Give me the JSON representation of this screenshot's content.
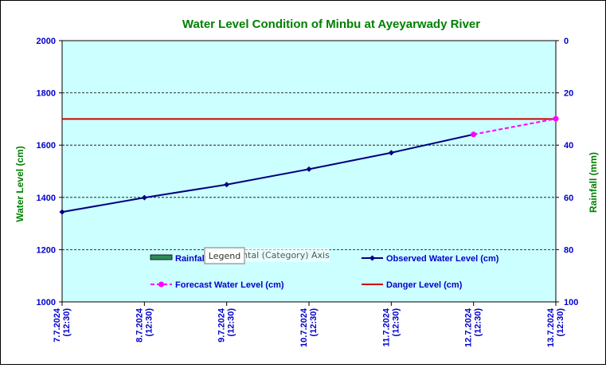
{
  "chart_data": {
    "type": "line",
    "title": "Water Level Condition of Minbu at Ayeyarwady River",
    "ylabel": "Water Level (cm)",
    "y2label": "Rainfall (mm)",
    "categories": [
      "7.7.2024\n(12:30)",
      "8.7.2024\n(12:30)",
      "9.7.2024\n(12:30)",
      "10.7.2024\n(12:30)",
      "11.7.2024\n(12:30)",
      "12.7.2024\n(12:30)",
      "13.7.2024\n(12:30)"
    ],
    "ylim": [
      1000,
      2000
    ],
    "yticks": [
      "1000",
      "1200",
      "1400",
      "1600",
      "1800",
      "2000"
    ],
    "y2lim": [
      100,
      0
    ],
    "y2ticks": [
      "0",
      "20",
      "40",
      "60",
      "80",
      "100"
    ],
    "grid": true,
    "series": [
      {
        "name": "Rainfall",
        "type": "bar",
        "values": [
          null,
          null,
          null,
          null,
          null,
          null,
          null
        ],
        "color": "#2e8b57"
      },
      {
        "name": "Observed Water Level (cm)",
        "type": "line",
        "values": [
          1344,
          1399,
          1449,
          1508,
          1571,
          1641,
          null
        ],
        "color": "#000080"
      },
      {
        "name": "Forecast Water Level (cm)",
        "type": "line",
        "dashed": true,
        "values": [
          null,
          null,
          null,
          null,
          null,
          1641,
          1701
        ],
        "color": "#ff00ff"
      },
      {
        "name": "Danger Level (cm)",
        "type": "line",
        "values": [
          1700,
          1700,
          1700,
          1700,
          1700,
          1700,
          1700
        ],
        "color": "#cc0000"
      }
    ],
    "legend_placement": "bottom-inside",
    "colors": {
      "plot_bg": "#ccffff",
      "title": "#008000",
      "axis_text": "#0000cc"
    }
  },
  "tooltips": {
    "legend": "Legend",
    "axis": "Horizontal (Category) Axis"
  }
}
